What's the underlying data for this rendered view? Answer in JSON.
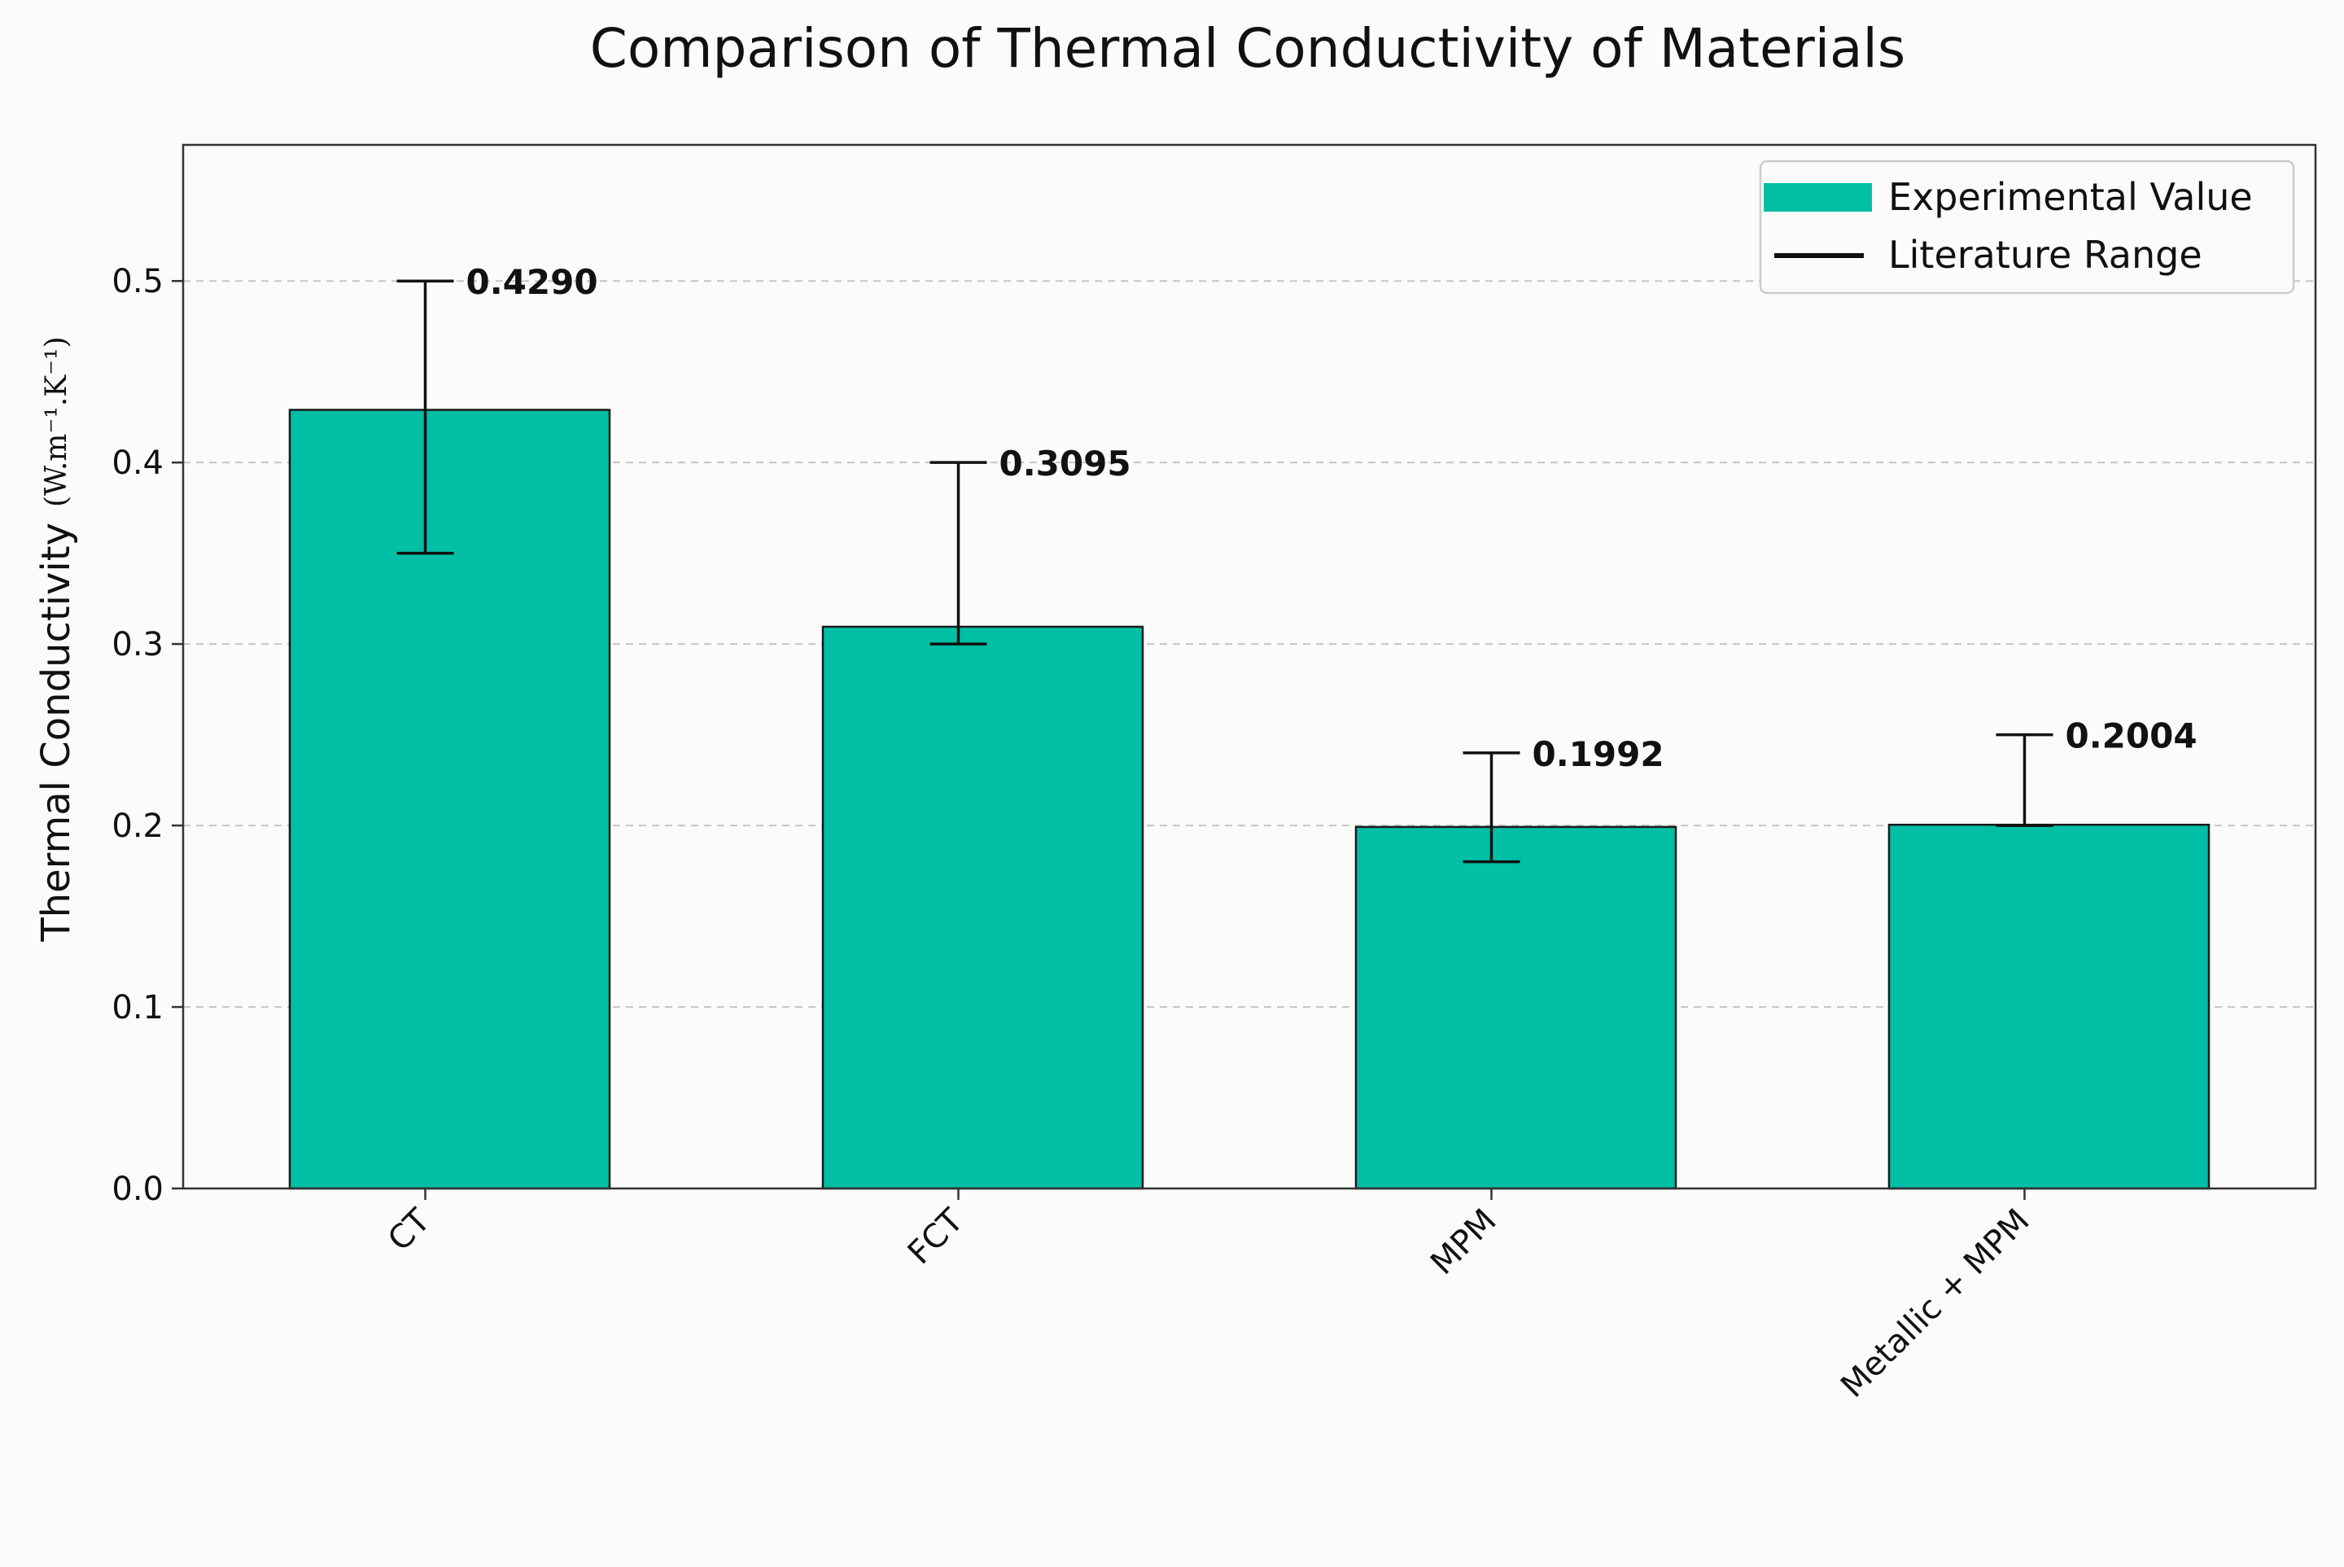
{
  "chart_data": {
    "type": "bar",
    "title": "Comparison of Thermal Conductivity of Materials",
    "xlabel": "",
    "ylabel": "Thermal Conductivity",
    "ylabel_unit": "(W.m⁻¹.K⁻¹)",
    "categories": [
      "CT",
      "FCT",
      "MPM",
      "Metallic + MPM"
    ],
    "series": [
      {
        "name": "Experimental Value",
        "values": [
          0.429,
          0.3095,
          0.1992,
          0.2004
        ],
        "labels": [
          "0.4290",
          "0.3095",
          "0.1992",
          "0.2004"
        ],
        "color": "#00bfa5"
      },
      {
        "name": "Literature Range",
        "ranges": [
          [
            0.35,
            0.5
          ],
          [
            0.3,
            0.4
          ],
          [
            0.18,
            0.24
          ],
          [
            0.2,
            0.25
          ]
        ],
        "color": "#111111"
      }
    ],
    "ylim": [
      0,
      0.575
    ],
    "yticks": [
      0.0,
      0.1,
      0.2,
      0.3,
      0.4,
      0.5
    ],
    "ytick_labels": [
      "0.0",
      "0.1",
      "0.2",
      "0.3",
      "0.4",
      "0.5"
    ],
    "grid": true,
    "legend": {
      "position": "top-right",
      "entries": [
        "Experimental Value",
        "Literature Range"
      ]
    }
  },
  "colors": {
    "bar": "#00bfa5",
    "bar_edge": "#1a1a1a",
    "axis": "#333333",
    "grid": "#c6c6c6",
    "background": "#fbfbfa"
  }
}
